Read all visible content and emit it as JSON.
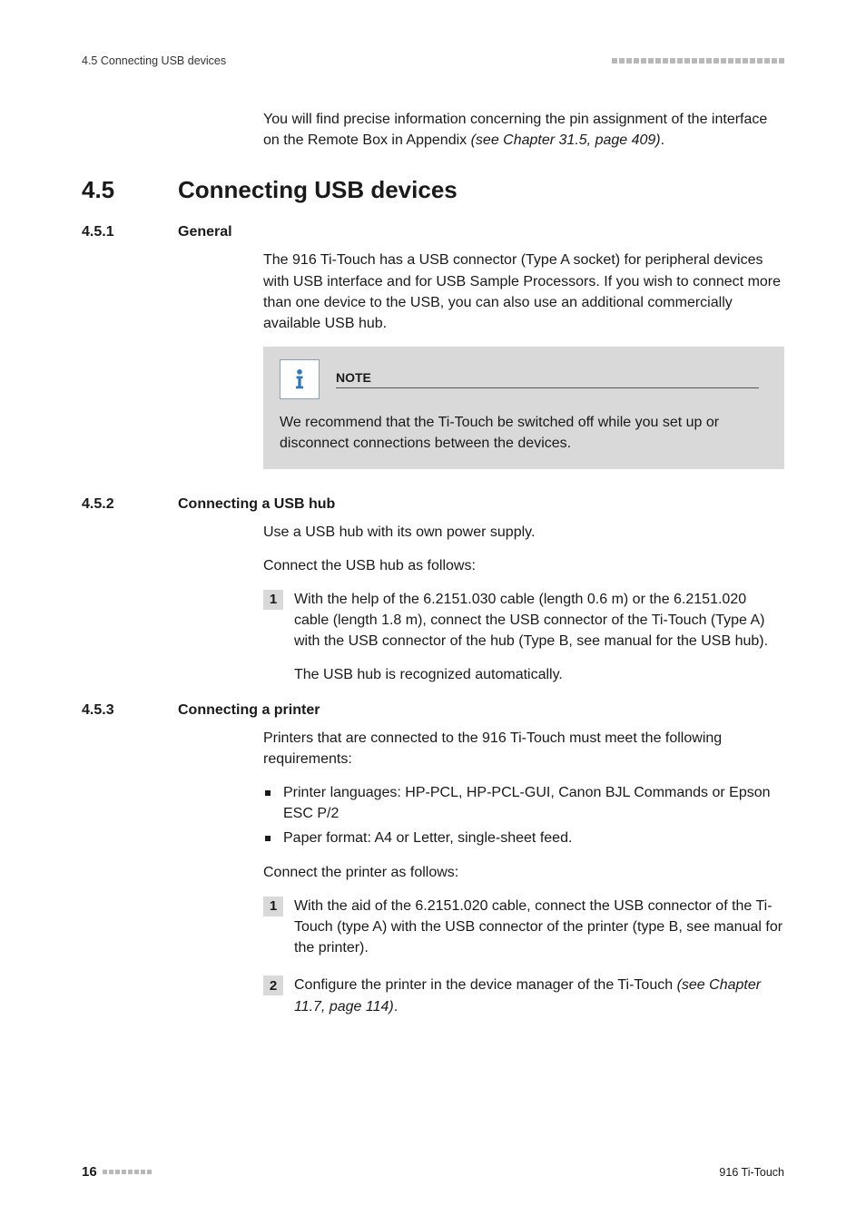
{
  "colors": {
    "text": "#1a1a1a",
    "background": "#ffffff",
    "note_bg": "#d9d9d9",
    "step_marker_bg": "#d9d9d9",
    "header_dots": "#b9b9b9",
    "note_icon_border": "#8aa0b8",
    "info_fill": "#2f78bc"
  },
  "typography": {
    "body_fontsize_pt": 12,
    "h2_fontsize_pt": 19,
    "h3_fontsize_pt": 12,
    "footer_fontsize_pt": 9,
    "font_family": "Segoe UI / Frutiger-like sans-serif"
  },
  "header": {
    "section_ref": "4.5 Connecting USB devices",
    "dot_count": 24
  },
  "intro": {
    "text_a": "You will find precise information concerning the pin assignment of the interface on the Remote Box in Appendix ",
    "xref": "(see Chapter 31.5, page 409)",
    "terminator": "."
  },
  "h2": {
    "num": "4.5",
    "title": "Connecting USB devices"
  },
  "s1": {
    "num": "4.5.1",
    "title": "General",
    "p1": "The 916 Ti-Touch has a USB connector (Type A socket) for peripheral devices with USB interface and for USB Sample Processors. If you wish to connect more than one device to the USB, you can also use an additional commercially available USB hub.",
    "note_label": "NOTE",
    "note_body": "We recommend that the Ti-Touch be switched off while you set up or disconnect connections between the devices."
  },
  "s2": {
    "num": "4.5.2",
    "title": "Connecting a USB hub",
    "p1": "Use a USB hub with its own power supply.",
    "p2": "Connect the USB hub as follows:",
    "step1_num": "1",
    "step1_a": "With the help of the 6.2151.030 cable (length 0.6 m) or the 6.2151.020 cable (length 1.8 m), connect the USB connector of the Ti-Touch (Type A) with the USB connector of the hub (Type B, see manual for the USB hub).",
    "step1_b": "The USB hub is recognized automatically."
  },
  "s3": {
    "num": "4.5.3",
    "title": "Connecting a printer",
    "p1": "Printers that are connected to the 916 Ti-Touch must meet the following requirements:",
    "bullets": [
      "Printer languages: HP-PCL, HP-PCL-GUI, Canon BJL Commands or Epson ESC P/2",
      "Paper format: A4 or Letter, single-sheet feed."
    ],
    "p2": "Connect the printer as follows:",
    "step1_num": "1",
    "step1": "With the aid of the 6.2151.020 cable, connect the USB connector of the Ti-Touch (type A) with the USB connector of the printer (type B, see manual for the printer).",
    "step2_num": "2",
    "step2_a": "Configure the printer in the device manager of the Ti-Touch ",
    "step2_xref": "(see Chapter 11.7, page 114)",
    "step2_term": "."
  },
  "footer": {
    "page_num": "16",
    "dot_count": 8,
    "product": "916 Ti-Touch"
  }
}
